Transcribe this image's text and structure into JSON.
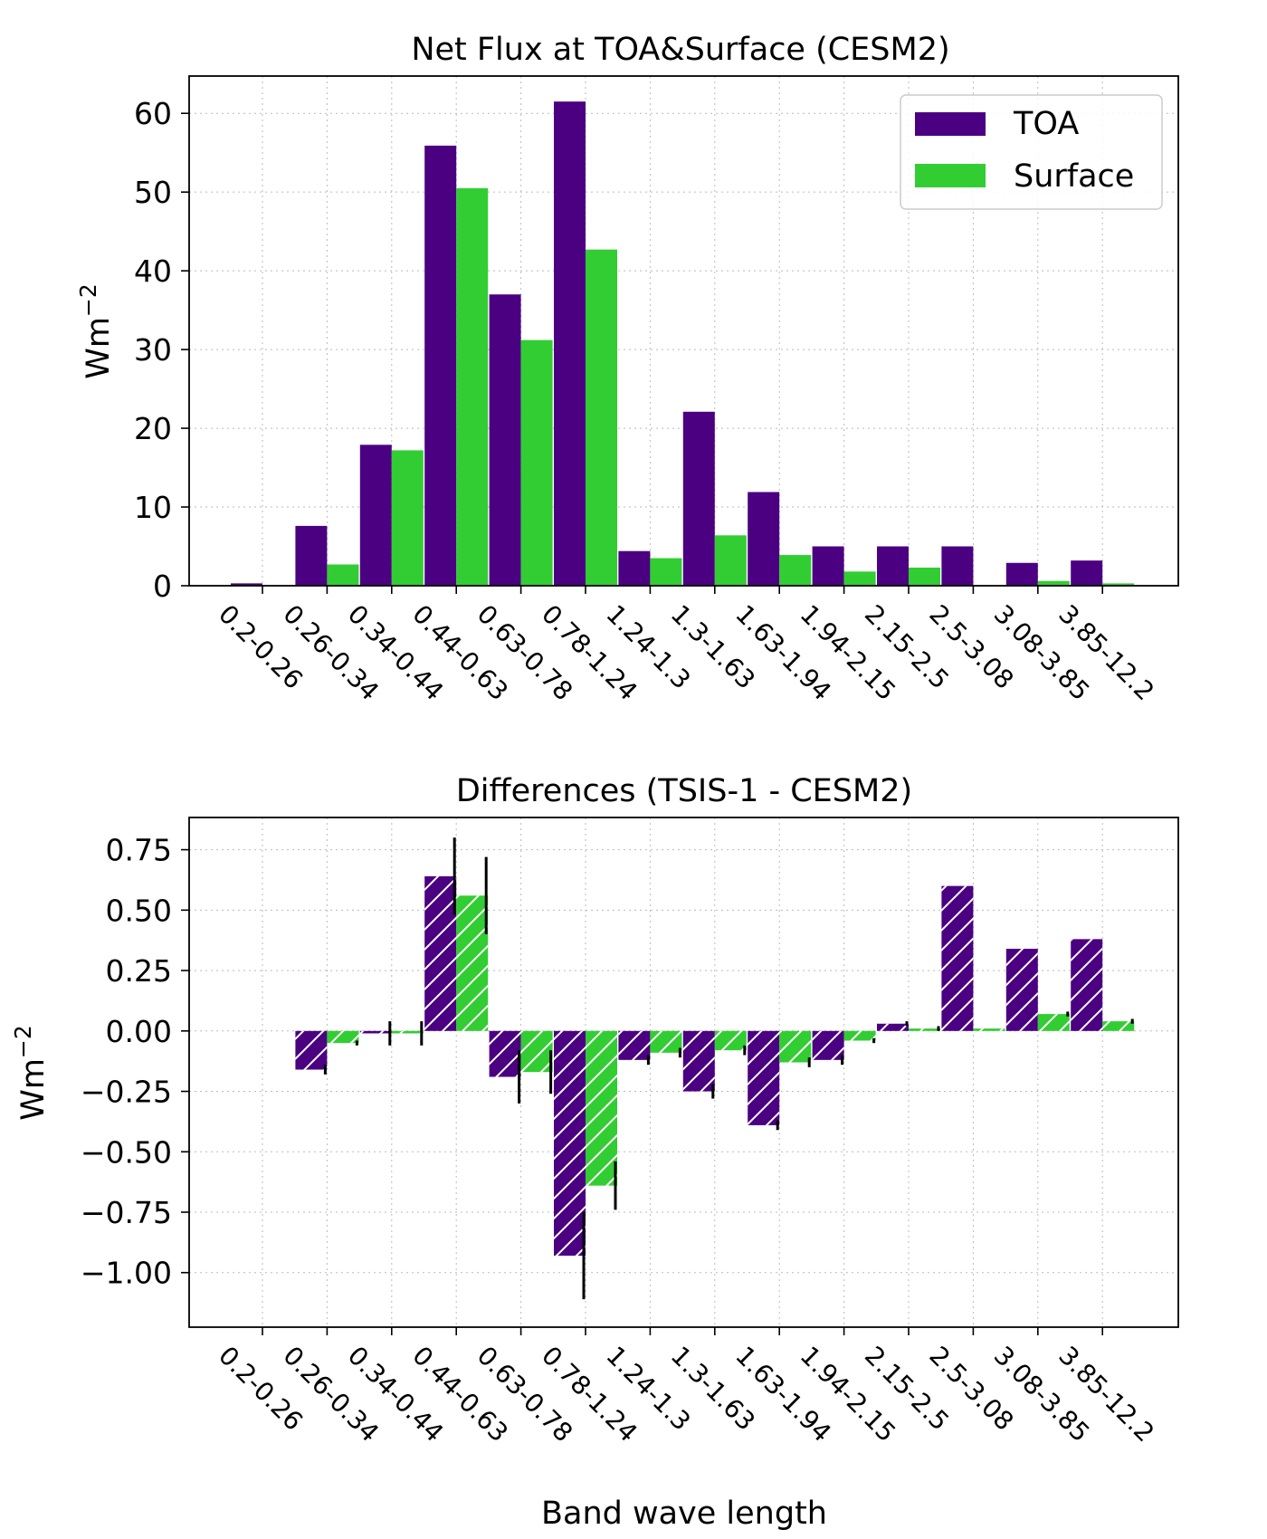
{
  "chart_data": [
    {
      "type": "bar",
      "title": "Net Flux at TOA&Surface (CESM2)",
      "xlabel": "",
      "ylabel": "Wm$^{-2}$",
      "ylabel_base": "Wm",
      "ylabel_sup": "−2",
      "ylim": [
        0,
        65
      ],
      "yticks": [
        "0",
        "10",
        "20",
        "30",
        "40",
        "50",
        "60"
      ],
      "ytick_values": [
        0,
        10,
        20,
        30,
        40,
        50,
        60
      ],
      "grid": true,
      "legend_position": "top-right",
      "categories": [
        "0.2-0.26",
        "0.26-0.34",
        "0.34-0.44",
        "0.44-0.63",
        "0.63-0.78",
        "0.78-1.24",
        "1.24-1.3",
        "1.3-1.63",
        "1.63-1.94",
        "1.94-2.15",
        "2.15-2.5",
        "2.5-3.08",
        "3.08-3.85",
        "3.85-12.2"
      ],
      "series": [
        {
          "name": "TOA",
          "color": "#4b0082",
          "values": [
            0.3,
            7.6,
            17.9,
            55.9,
            37.0,
            61.5,
            4.4,
            22.1,
            11.9,
            5.0,
            5.0,
            5.0,
            2.9,
            3.2
          ]
        },
        {
          "name": "Surface",
          "color": "#32cd32",
          "values": [
            0.0,
            2.7,
            17.2,
            50.5,
            31.2,
            42.7,
            3.5,
            6.4,
            3.9,
            1.8,
            2.3,
            0.0,
            0.6,
            0.3
          ]
        }
      ]
    },
    {
      "type": "bar",
      "title": "Differences (TSIS-1 - CESM2)",
      "xlabel": "Band wave length",
      "ylabel": "Wm$^{-2}$",
      "ylabel_base": "Wm",
      "ylabel_sup": "−2",
      "ylim": [
        -1.2,
        0.9
      ],
      "yticks": [
        "−1.00",
        "−0.75",
        "−0.50",
        "−0.25",
        "0.00",
        "0.25",
        "0.50",
        "0.75"
      ],
      "ytick_values": [
        -1.0,
        -0.75,
        -0.5,
        -0.25,
        0.0,
        0.25,
        0.5,
        0.75
      ],
      "grid": true,
      "hatch": true,
      "categories": [
        "0.2-0.26",
        "0.26-0.34",
        "0.34-0.44",
        "0.44-0.63",
        "0.63-0.78",
        "0.78-1.24",
        "1.24-1.3",
        "1.3-1.63",
        "1.63-1.94",
        "1.94-2.15",
        "2.15-2.5",
        "2.5-3.08",
        "3.08-3.85",
        "3.85-12.2"
      ],
      "series": [
        {
          "name": "TOA",
          "color": "#4b0082",
          "values": [
            0.0,
            -0.16,
            -0.01,
            0.64,
            -0.19,
            -0.93,
            -0.12,
            -0.25,
            -0.39,
            -0.12,
            0.03,
            0.6,
            0.34,
            0.38
          ],
          "errors": [
            0.0,
            0.02,
            0.05,
            0.16,
            0.11,
            0.18,
            0.02,
            0.03,
            0.02,
            0.02,
            0.01,
            0.0,
            0.0,
            0.0
          ]
        },
        {
          "name": "Surface",
          "color": "#32cd32",
          "values": [
            0.0,
            -0.05,
            -0.01,
            0.56,
            -0.17,
            -0.64,
            -0.09,
            -0.08,
            -0.13,
            -0.04,
            0.01,
            0.01,
            0.07,
            0.04
          ],
          "errors": [
            0.0,
            0.01,
            0.05,
            0.16,
            0.09,
            0.1,
            0.02,
            0.02,
            0.02,
            0.01,
            0.01,
            0.0,
            0.01,
            0.01
          ]
        }
      ]
    }
  ]
}
